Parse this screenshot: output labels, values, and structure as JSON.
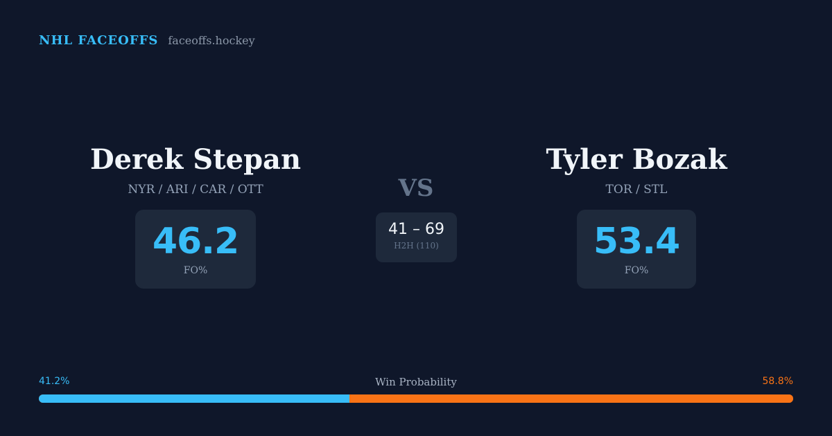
{
  "brand": {
    "title": "NHL FACEOFFS",
    "site": "faceoffs.hockey"
  },
  "players": [
    {
      "name": "Derek Stepan",
      "teams": "NYR / ARI / CAR / OTT",
      "fo_pct": "46.2",
      "fo_label": "FO%"
    },
    {
      "name": "Tyler Bozak",
      "teams": "TOR / STL",
      "fo_pct": "53.4",
      "fo_label": "FO%"
    }
  ],
  "vs_label": "VS",
  "h2h": {
    "score": "41 – 69",
    "label": "H2H (110)"
  },
  "win_probability": {
    "label": "Win Probability",
    "left_text": "41.2%",
    "right_text": "58.8%",
    "left_value": 0.412,
    "right_value": 0.588
  },
  "colors": {
    "background": "#0f172a",
    "card": "#1e293b",
    "accent_blue": "#38bdf8",
    "accent_orange": "#f97316",
    "muted": "#94a3b8"
  }
}
